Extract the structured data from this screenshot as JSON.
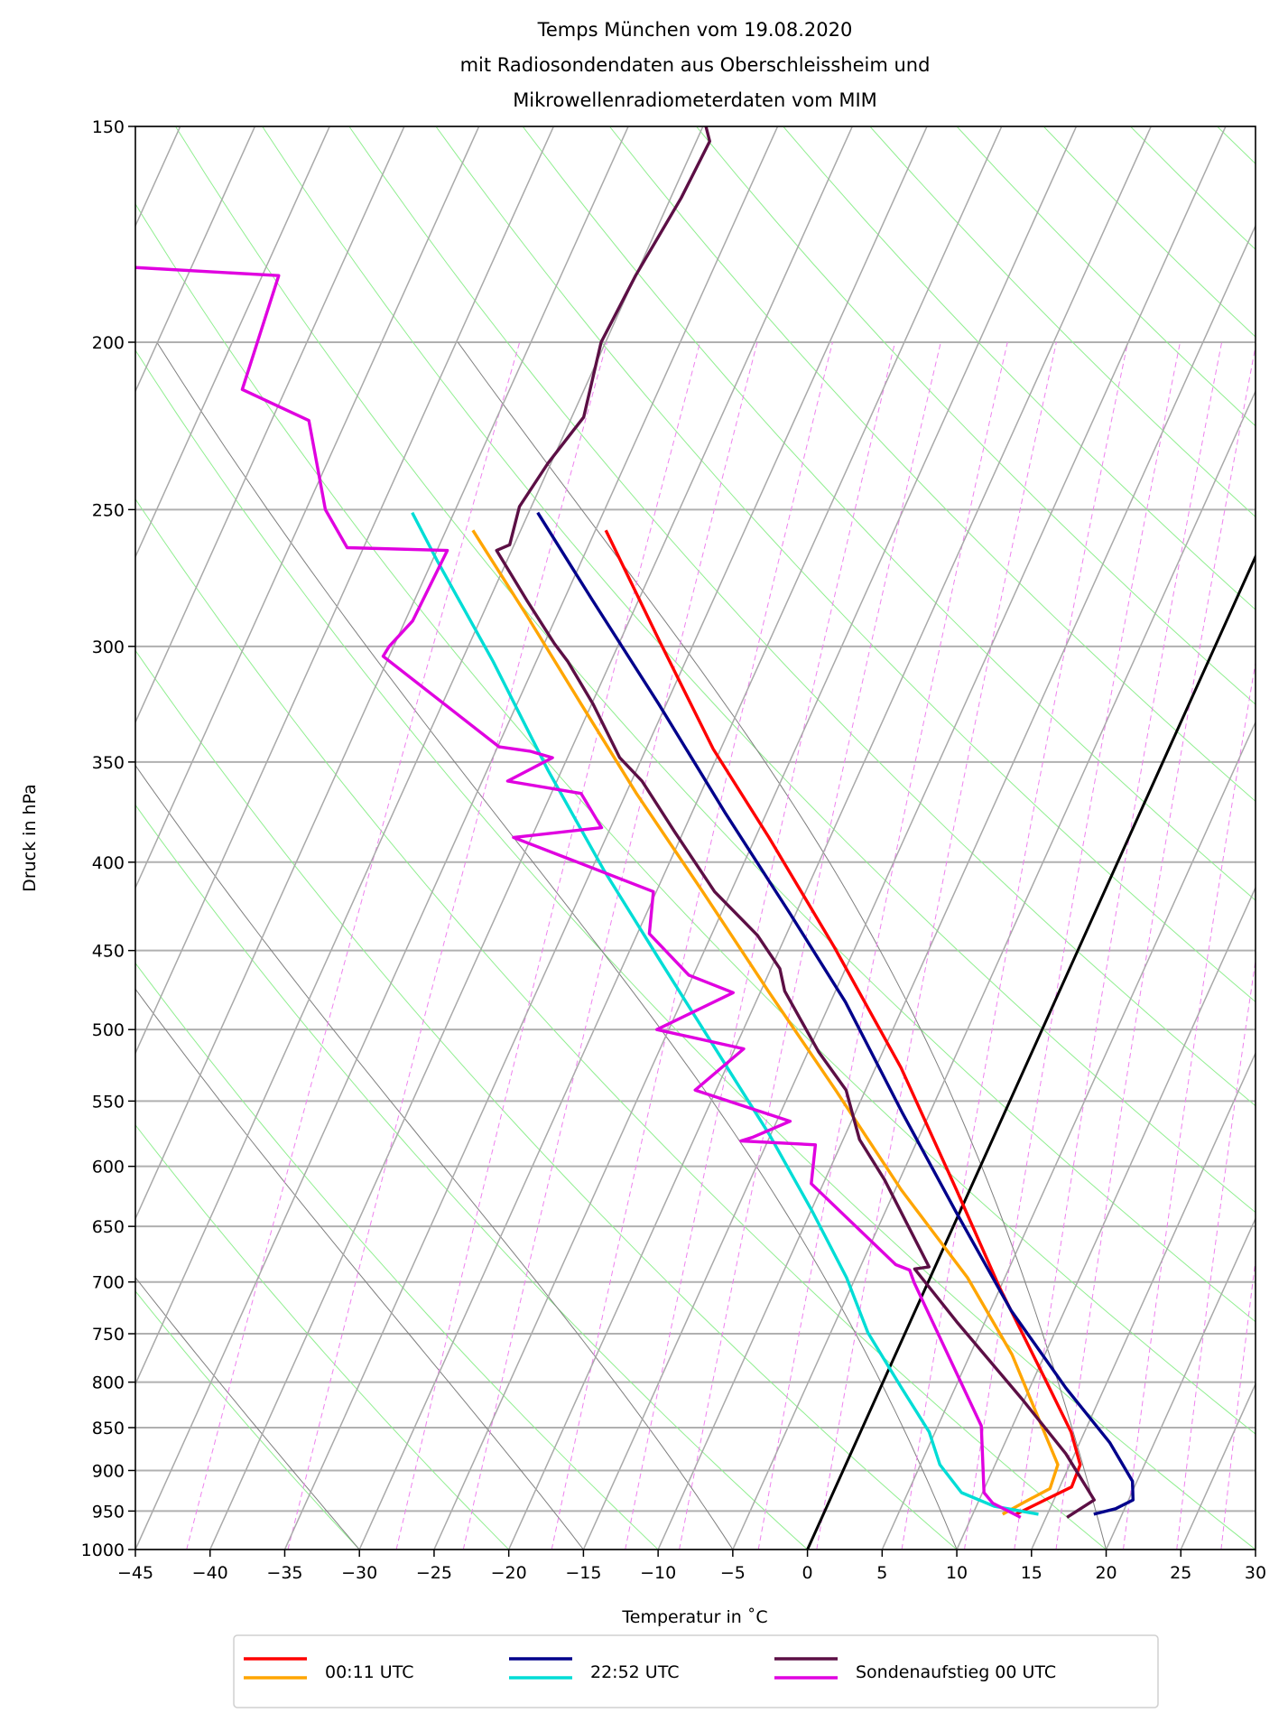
{
  "chart_data": {
    "type": "line",
    "subtype": "skew-T log-p diagram",
    "title": [
      "Temps München vom 19.08.2020",
      "mit Radiosondendaten aus Oberschleissheim und",
      "Mikrowellenradiometerdaten vom MIM"
    ],
    "xlabel": "Temperatur in $^\\circ$C",
    "xlabel_display": "Temperatur in ˚C",
    "ylabel": "Druck in hPa",
    "xlim": [
      -45,
      30
    ],
    "ylim": [
      1000,
      150
    ],
    "y_scale": "log",
    "x_ticks": [
      -45,
      -40,
      -35,
      -30,
      -25,
      -20,
      -15,
      -10,
      -5,
      0,
      5,
      10,
      15,
      20,
      25,
      30
    ],
    "x_tick_labels": [
      "−45",
      "−40",
      "−35",
      "−30",
      "−25",
      "−20",
      "−15",
      "−10",
      "−5",
      "0",
      "5",
      "10",
      "15",
      "20",
      "25",
      "30"
    ],
    "y_ticks": [
      150,
      200,
      250,
      300,
      350,
      400,
      450,
      500,
      550,
      600,
      650,
      700,
      750,
      800,
      850,
      900,
      950,
      1000
    ],
    "y_tick_labels": [
      "150",
      "200",
      "250",
      "300",
      "350",
      "400",
      "450",
      "500",
      "550",
      "600",
      "650",
      "700",
      "750",
      "800",
      "850",
      "900",
      "950",
      "1000"
    ],
    "grid": true,
    "highlighted_isotherm_C": 0,
    "colors": {
      "isotherm": "#a9a9a9",
      "highlighted_isotherm": "#000000",
      "dry_adiabat": "#90ee90",
      "moist_adiabat": "#7f7f7f",
      "mixing_ratio": "#ee82ee",
      "pressure_grid": "#b0b0b0"
    },
    "legend": {
      "placement": "bottom-center, outside",
      "entries": [
        {
          "label": "00:11 UTC",
          "colors": [
            "#ff0000",
            "#ffa500"
          ]
        },
        {
          "label": "22:52 UTC",
          "colors": [
            "#00008b",
            "#00ddd6"
          ]
        },
        {
          "label": "Sondenaufstieg 00 UTC",
          "colors": [
            "#5c0f45",
            "#e000e0"
          ]
        }
      ]
    },
    "series": [
      {
        "legend": "00:11 UTC",
        "color": "#ff0000",
        "p": [
          257,
          297,
          344,
          387,
          448,
          526,
          619,
          706,
          794,
          855,
          893,
          920,
          936,
          954
        ],
        "T": [
          -44.3,
          -37.5,
          -30.5,
          -24.1,
          -16.4,
          -8.3,
          -0.9,
          5.0,
          10.6,
          14.1,
          15.7,
          15.8,
          14.4,
          12.9
        ]
      },
      {
        "legend": "00:11 UTC",
        "color": "#ffa500",
        "p": [
          257,
          288,
          324,
          365,
          416,
          475,
          542,
          619,
          696,
          771,
          855,
          893,
          922,
          940,
          954
        ],
        "T": [
          -53.2,
          -47.0,
          -40.7,
          -34.3,
          -26.9,
          -19.5,
          -12.0,
          -4.6,
          2.5,
          7.8,
          12.3,
          14.2,
          14.4,
          13.0,
          12.0
        ]
      },
      {
        "legend": "22:52 UTC",
        "color": "#00008b",
        "p": [
          251,
          282,
          324,
          375,
          429,
          482,
          558,
          637,
          727,
          806,
          867,
          913,
          936,
          947,
          954
        ],
        "T": [
          -49.4,
          -43.1,
          -35.5,
          -27.7,
          -20.3,
          -14.0,
          -6.9,
          -0.3,
          6.4,
          12.4,
          17.0,
          19.7,
          20.3,
          19.4,
          18.1
        ]
      },
      {
        "legend": "22:52 UTC",
        "color": "#00ddd6",
        "p": [
          251,
          268,
          306,
          354,
          404,
          455,
          511,
          575,
          637,
          696,
          749,
          806,
          855,
          893,
          927,
          944,
          954
        ],
        "T": [
          -57.8,
          -54.6,
          -47.9,
          -40.9,
          -34.2,
          -27.8,
          -21.5,
          -15.1,
          -9.9,
          -5.6,
          -2.5,
          1.4,
          4.6,
          6.3,
          8.6,
          11.2,
          14.4
        ]
      },
      {
        "legend": "Sondenaufstieg 00 UTC",
        "color": "#5c0f45",
        "p": [
          150,
          153,
          165,
          183,
          200,
          221,
          235,
          249,
          262,
          264,
          282,
          299,
          306,
          324,
          348,
          359,
          384,
          416,
          441,
          461,
          475,
          515,
          542,
          568,
          579,
          611,
          686,
          688,
          738,
          818,
          880,
          936,
          958
        ],
        "T": [
          -49.8,
          -49.1,
          -49.3,
          -50.0,
          -50.3,
          -49.2,
          -50.2,
          -50.8,
          -50.3,
          -51.0,
          -47.5,
          -44.3,
          -42.9,
          -39.9,
          -36.5,
          -34.3,
          -30.6,
          -26.1,
          -21.9,
          -19.4,
          -18.4,
          -14.3,
          -11.3,
          -9.6,
          -8.9,
          -6.0,
          -0.4,
          -1.3,
          3.1,
          9.8,
          14.4,
          17.7,
          16.4
        ]
      },
      {
        "legend": "Sondenaufstieg 00 UTC",
        "color": "#e000e0",
        "p": [
          181,
          183,
          213,
          222,
          250,
          263,
          264,
          290,
          300,
          304,
          343,
          345,
          348,
          359,
          365,
          382,
          387,
          416,
          440,
          465,
          476,
          500,
          513,
          542,
          565,
          577,
          580,
          583,
          614,
          684,
          689,
          701,
          848,
          927,
          940,
          958
        ],
        "T": [
          -83.9,
          -73.9,
          -72.9,
          -67.5,
          -63.7,
          -61.1,
          -54.3,
          -54.5,
          -55.3,
          -55.4,
          -44.9,
          -42.7,
          -41.0,
          -43.3,
          -38.0,
          -35.6,
          -41.2,
          -30.2,
          -29.2,
          -25.3,
          -21.8,
          -25.8,
          -19.4,
          -21.4,
          -14.1,
          -16.1,
          -16.8,
          -11.7,
          -10.8,
          -2.7,
          -1.6,
          -0.9,
          7.9,
          10.1,
          11.0,
          13.3
        ]
      }
    ]
  }
}
